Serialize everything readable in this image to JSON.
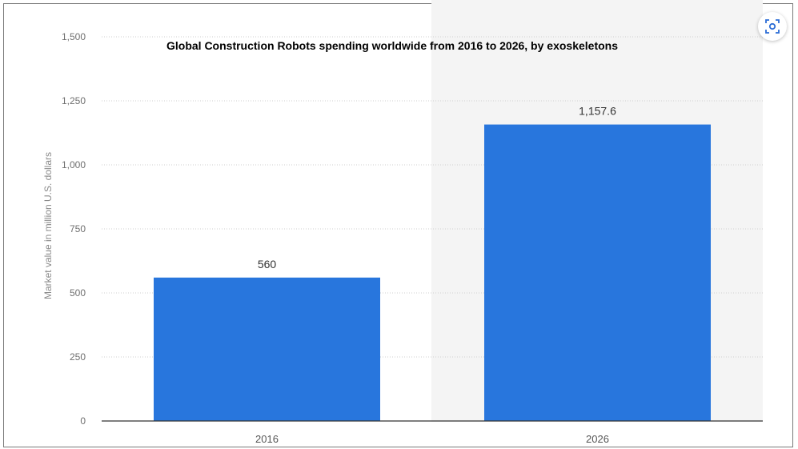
{
  "chart_data": {
    "type": "bar",
    "title": "Global Construction Robots spending worldwide from 2016 to 2026, by exoskeletons",
    "ylabel": "Market value in million U.S. dollars",
    "xlabel": "",
    "categories": [
      "2016",
      "2026"
    ],
    "values": [
      560,
      1157.6
    ],
    "value_labels": [
      "560",
      "1,157.6"
    ],
    "ylim": [
      0,
      1500
    ],
    "yticks": [
      0,
      250,
      500,
      750,
      1000,
      1250,
      1500
    ],
    "ytick_labels": [
      "0",
      "250",
      "500",
      "750",
      "1,000",
      "1,250",
      "1,500"
    ],
    "grid": true,
    "bar_color": "#2876dd"
  },
  "toolbar": {
    "expand_icon": "expand-view-icon"
  }
}
